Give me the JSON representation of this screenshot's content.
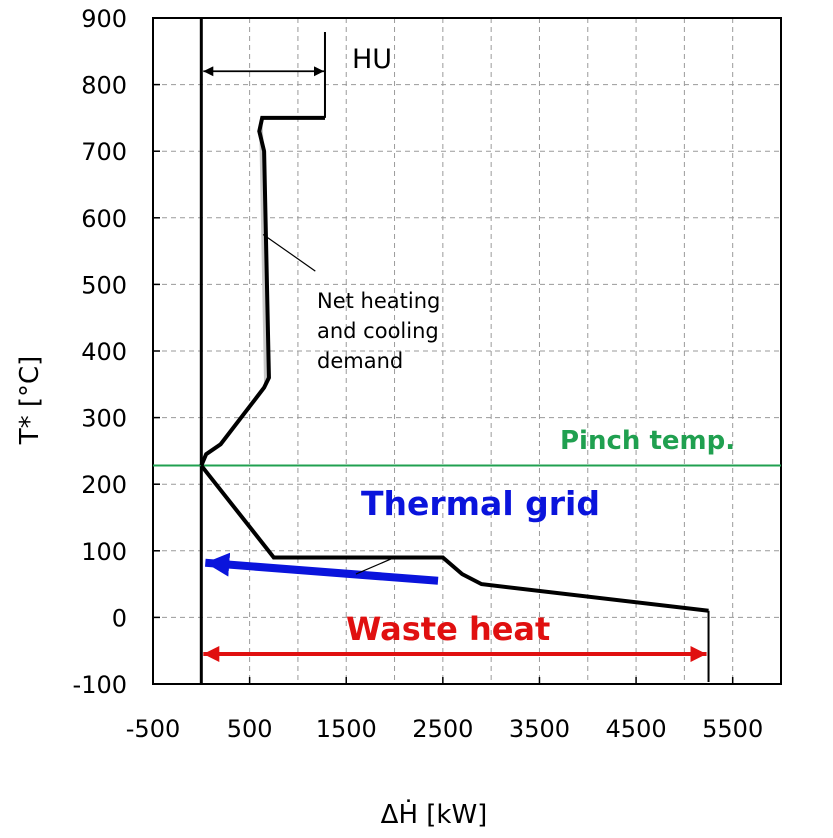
{
  "chart_data": {
    "type": "line",
    "title": "",
    "xlabel": "ΔḢ [kW]",
    "ylabel": "T* [°C]",
    "xlim": [
      -500,
      6000
    ],
    "ylim": [
      -100,
      900
    ],
    "xticks": [
      -500,
      500,
      1500,
      2500,
      3500,
      4500,
      5500
    ],
    "xtick_labels": [
      "-500",
      "500",
      "1500",
      "2500",
      "3500",
      "4500",
      "5500"
    ],
    "yticks": [
      -100,
      0,
      100,
      200,
      300,
      400,
      500,
      600,
      700,
      800,
      900
    ],
    "ytick_labels": [
      "-100",
      "0",
      "100",
      "200",
      "300",
      "400",
      "500",
      "600",
      "700",
      "800",
      "900"
    ],
    "grid": true,
    "series": [
      {
        "role": "grand composite curve above pinch",
        "color": "#000000",
        "x": [
          0,
          50,
          200,
          650,
          700,
          650,
          600,
          630,
          1280
        ],
        "y": [
          228,
          245,
          260,
          345,
          360,
          700,
          730,
          750,
          750
        ]
      },
      {
        "role": "grand composite curve below pinch",
        "color": "#000000",
        "x": [
          0,
          750,
          2500,
          2700,
          2900,
          5250
        ],
        "y": [
          228,
          90,
          90,
          65,
          50,
          10
        ]
      }
    ],
    "shaded_region": {
      "color": "#c8c8c8",
      "upper_edge": {
        "x": [
          600,
          630,
          650,
          700
        ],
        "y": [
          730,
          750,
          700,
          360
        ]
      },
      "lower_edge": {
        "x": [
          600,
          650
        ],
        "y": [
          730,
          345
        ]
      }
    },
    "pinch_line": {
      "y": 228,
      "color": "#20a050",
      "label": "Pinch temp."
    },
    "zero_line": {
      "x": 0,
      "color": "#000000"
    },
    "hu_arrow": {
      "x_start": 0,
      "x_end": 1280,
      "y": 820,
      "label": "HU",
      "color": "#000000",
      "bracket_to_y": 750
    },
    "thermal_grid_arrow": {
      "from": {
        "x": 2450,
        "y": 55
      },
      "to": {
        "x": 0,
        "y": 82
      },
      "color": "#0a14dc",
      "label": "Thermal grid"
    },
    "waste_heat_arrow": {
      "x_start": 0,
      "x_end": 5250,
      "y": -55,
      "color": "#e01010",
      "label": "Waste heat"
    },
    "annotations": [
      {
        "text_lines": [
          "Net heating",
          "and cooling",
          "demand"
        ],
        "leader_from": {
          "x": 1180,
          "y": 520
        },
        "leader_to": {
          "x": 640,
          "y": 575
        }
      },
      {
        "text": "",
        "leader_from": {
          "x": 1600,
          "y": 65
        },
        "leader_to": {
          "x": 2000,
          "y": 90
        }
      }
    ]
  }
}
